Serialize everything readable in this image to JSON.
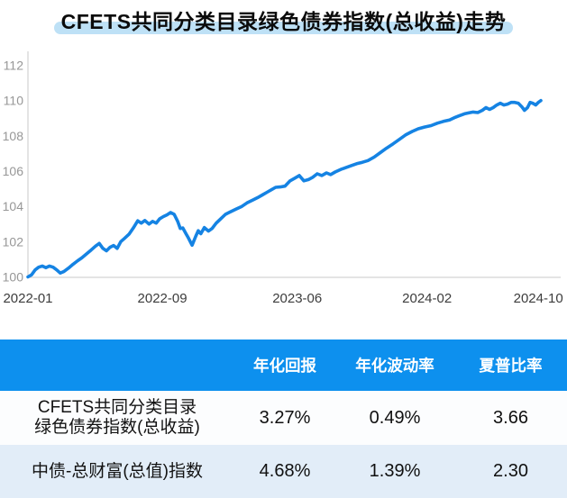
{
  "title": "CFETS共同分类目录绿色债券指数(总收益)走势",
  "colors": {
    "title_highlight": "#bee1f6",
    "line": "#1583e3",
    "table_header_bg": "#0d90ee",
    "row_alt_bg": "#e2edf8",
    "axis": "#c9c9c9",
    "y_tick_text": "#979797",
    "x_tick_text": "#3c3c3c"
  },
  "chart_data": {
    "type": "line",
    "title": "CFETS共同分类目录绿色债券指数(总收益)走势",
    "xlabel": "",
    "ylabel": "",
    "grid": false,
    "legend_position": "none",
    "x_range": [
      "2022-01",
      "2024-10"
    ],
    "x_tick_labels": [
      "2022-01",
      "2022-09",
      "2023-06",
      "2024-02",
      "2024-10"
    ],
    "x_tick_positions": [
      0,
      0.262,
      0.525,
      0.778,
      0.995
    ],
    "y_ticks": [
      100,
      102,
      104,
      106,
      108,
      110,
      112
    ],
    "ylim": [
      100,
      112.8
    ],
    "series": [
      {
        "name": "CFETS共同分类目录绿色债券指数(总收益)",
        "color": "#1583e3",
        "points": [
          [
            0.0,
            100.0
          ],
          [
            0.007,
            100.12
          ],
          [
            0.014,
            100.4
          ],
          [
            0.021,
            100.55
          ],
          [
            0.028,
            100.62
          ],
          [
            0.035,
            100.52
          ],
          [
            0.042,
            100.62
          ],
          [
            0.049,
            100.55
          ],
          [
            0.056,
            100.4
          ],
          [
            0.063,
            100.22
          ],
          [
            0.07,
            100.3
          ],
          [
            0.079,
            100.5
          ],
          [
            0.088,
            100.72
          ],
          [
            0.097,
            100.92
          ],
          [
            0.105,
            101.08
          ],
          [
            0.114,
            101.3
          ],
          [
            0.123,
            101.52
          ],
          [
            0.132,
            101.75
          ],
          [
            0.139,
            101.9
          ],
          [
            0.146,
            101.62
          ],
          [
            0.153,
            101.48
          ],
          [
            0.16,
            101.68
          ],
          [
            0.167,
            101.78
          ],
          [
            0.174,
            101.62
          ],
          [
            0.181,
            102.0
          ],
          [
            0.188,
            102.18
          ],
          [
            0.197,
            102.42
          ],
          [
            0.206,
            102.8
          ],
          [
            0.214,
            103.18
          ],
          [
            0.221,
            103.05
          ],
          [
            0.228,
            103.2
          ],
          [
            0.236,
            103.0
          ],
          [
            0.243,
            103.15
          ],
          [
            0.25,
            103.05
          ],
          [
            0.257,
            103.3
          ],
          [
            0.264,
            103.42
          ],
          [
            0.271,
            103.52
          ],
          [
            0.278,
            103.65
          ],
          [
            0.285,
            103.55
          ],
          [
            0.292,
            103.15
          ],
          [
            0.297,
            102.75
          ],
          [
            0.302,
            102.78
          ],
          [
            0.308,
            102.45
          ],
          [
            0.313,
            102.2
          ],
          [
            0.32,
            101.8
          ],
          [
            0.327,
            102.3
          ],
          [
            0.332,
            102.62
          ],
          [
            0.337,
            102.45
          ],
          [
            0.344,
            102.8
          ],
          [
            0.352,
            102.6
          ],
          [
            0.359,
            102.75
          ],
          [
            0.367,
            103.05
          ],
          [
            0.376,
            103.3
          ],
          [
            0.385,
            103.55
          ],
          [
            0.395,
            103.7
          ],
          [
            0.406,
            103.85
          ],
          [
            0.417,
            104.0
          ],
          [
            0.427,
            104.2
          ],
          [
            0.438,
            104.35
          ],
          [
            0.448,
            104.5
          ],
          [
            0.457,
            104.65
          ],
          [
            0.466,
            104.8
          ],
          [
            0.475,
            104.95
          ],
          [
            0.483,
            105.08
          ],
          [
            0.492,
            105.1
          ],
          [
            0.501,
            105.15
          ],
          [
            0.511,
            105.45
          ],
          [
            0.52,
            105.6
          ],
          [
            0.529,
            105.75
          ],
          [
            0.538,
            105.45
          ],
          [
            0.547,
            105.52
          ],
          [
            0.555,
            105.65
          ],
          [
            0.564,
            105.85
          ],
          [
            0.573,
            105.75
          ],
          [
            0.582,
            105.9
          ],
          [
            0.59,
            105.8
          ],
          [
            0.599,
            105.95
          ],
          [
            0.61,
            106.1
          ],
          [
            0.62,
            106.2
          ],
          [
            0.631,
            106.32
          ],
          [
            0.641,
            106.42
          ],
          [
            0.652,
            106.5
          ],
          [
            0.663,
            106.6
          ],
          [
            0.675,
            106.8
          ],
          [
            0.687,
            107.05
          ],
          [
            0.699,
            107.3
          ],
          [
            0.712,
            107.55
          ],
          [
            0.724,
            107.8
          ],
          [
            0.736,
            108.05
          ],
          [
            0.749,
            108.25
          ],
          [
            0.761,
            108.4
          ],
          [
            0.773,
            108.5
          ],
          [
            0.786,
            108.58
          ],
          [
            0.798,
            108.72
          ],
          [
            0.81,
            108.82
          ],
          [
            0.822,
            108.9
          ],
          [
            0.833,
            109.05
          ],
          [
            0.842,
            109.15
          ],
          [
            0.851,
            109.25
          ],
          [
            0.859,
            109.3
          ],
          [
            0.868,
            109.35
          ],
          [
            0.877,
            109.32
          ],
          [
            0.886,
            109.45
          ],
          [
            0.893,
            109.6
          ],
          [
            0.9,
            109.5
          ],
          [
            0.907,
            109.6
          ],
          [
            0.914,
            109.75
          ],
          [
            0.921,
            109.85
          ],
          [
            0.928,
            109.75
          ],
          [
            0.935,
            109.8
          ],
          [
            0.942,
            109.9
          ],
          [
            0.949,
            109.9
          ],
          [
            0.956,
            109.85
          ],
          [
            0.963,
            109.65
          ],
          [
            0.968,
            109.45
          ],
          [
            0.974,
            109.6
          ],
          [
            0.979,
            109.9
          ],
          [
            0.984,
            109.85
          ],
          [
            0.99,
            109.75
          ],
          [
            0.995,
            109.9
          ],
          [
            1.0,
            110.0
          ]
        ]
      }
    ]
  },
  "table": {
    "col_headers": [
      "年化回报",
      "年化波动率",
      "夏普比率"
    ],
    "rows": [
      {
        "name_line1": "CFETS共同分类目录",
        "name_line2": "绿色债券指数(总收益)",
        "annual_return": "3.27%",
        "annual_volatility": "0.49%",
        "sharpe_ratio": "3.66"
      },
      {
        "name_line1": "中债-总财富(总值)指数",
        "name_line2": "",
        "annual_return": "4.68%",
        "annual_volatility": "1.39%",
        "sharpe_ratio": "2.30"
      }
    ]
  }
}
